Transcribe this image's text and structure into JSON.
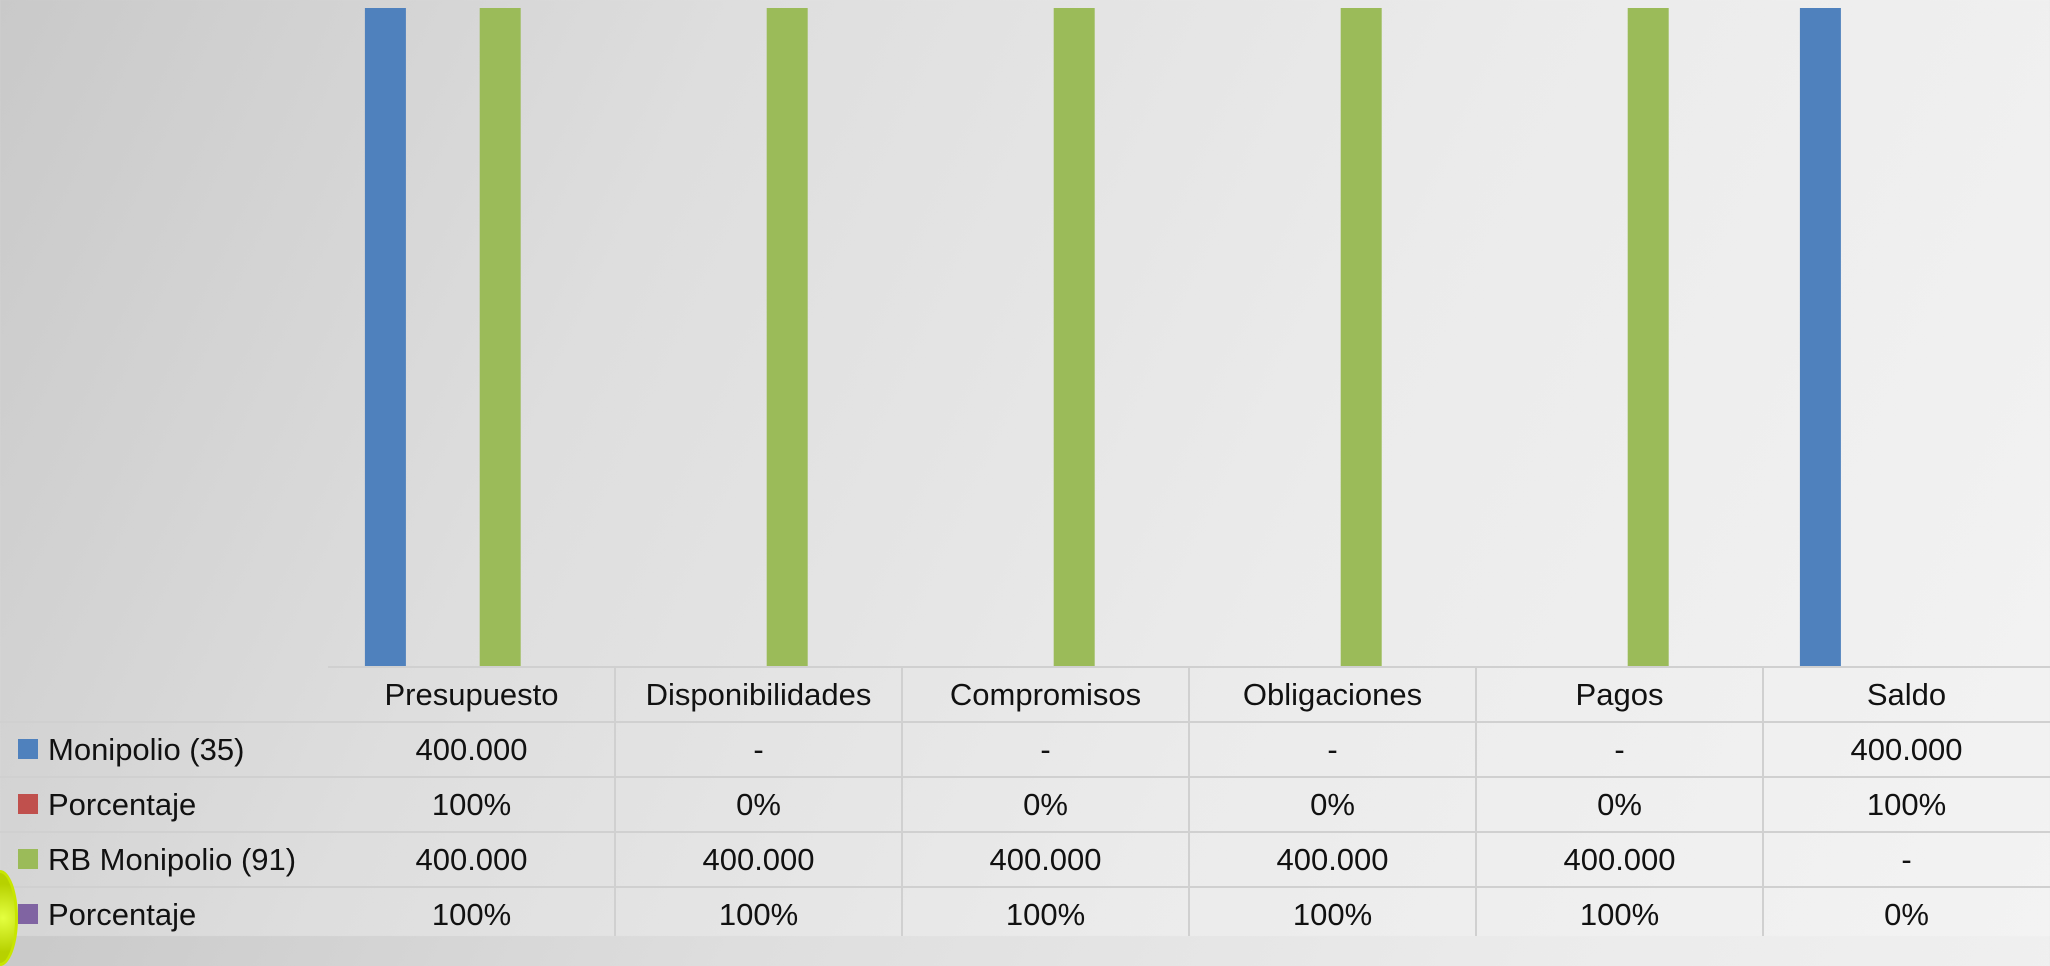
{
  "chart_data": {
    "type": "bar",
    "categories": [
      "Presupuesto",
      "Disponibilidades",
      "Compromisos",
      "Obligaciones",
      "Pagos",
      "Saldo"
    ],
    "series": [
      {
        "name": "Monipolio (35)",
        "color": "#4f81bd",
        "values": [
          400000,
          0,
          0,
          0,
          0,
          400000
        ],
        "labels": [
          "400.000",
          "-",
          "-",
          "-",
          "-",
          "400.000"
        ]
      },
      {
        "name": "Porcentaje",
        "color": "#c0504d",
        "values": [
          1,
          0,
          0,
          0,
          0,
          1
        ],
        "labels": [
          "100%",
          "0%",
          "0%",
          "0%",
          "0%",
          "100%"
        ]
      },
      {
        "name": "RB Monipolio (91)",
        "color": "#9bbb59",
        "values": [
          400000,
          400000,
          400000,
          400000,
          400000,
          0
        ],
        "labels": [
          "400.000",
          "400.000",
          "400.000",
          "400.000",
          "400.000",
          "-"
        ]
      },
      {
        "name": "Porcentaje",
        "color": "#8064a2",
        "values": [
          1,
          1,
          1,
          1,
          1,
          0
        ],
        "labels": [
          "100%",
          "100%",
          "100%",
          "100%",
          "100%",
          "0%"
        ]
      }
    ],
    "ylim": [
      0,
      400000
    ],
    "grid": false,
    "legend": "data table",
    "has_data_table": true
  }
}
